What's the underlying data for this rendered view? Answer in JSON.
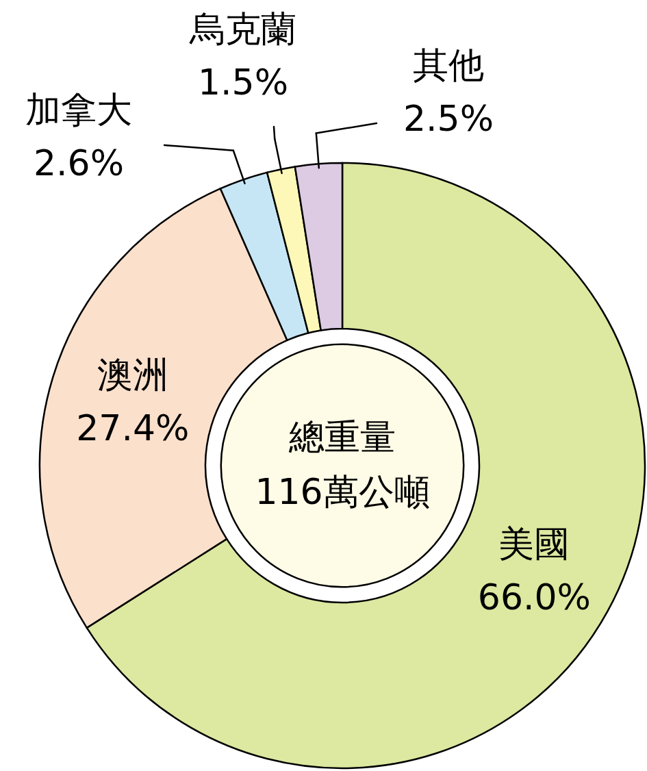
{
  "chart_data": {
    "type": "donut",
    "categories": [
      "美國",
      "澳洲",
      "加拿大",
      "烏克蘭",
      "其他"
    ],
    "values": [
      66.0,
      27.4,
      2.6,
      1.5,
      2.5
    ],
    "value_labels": [
      "66.0%",
      "27.4%",
      "2.6%",
      "1.5%",
      "2.5%"
    ],
    "colors": [
      "#dde8a0",
      "#fbe0cc",
      "#c6e6f5",
      "#fdf8b8",
      "#dccbe3"
    ],
    "annotations": [
      "總重量",
      "116萬公噸"
    ]
  }
}
